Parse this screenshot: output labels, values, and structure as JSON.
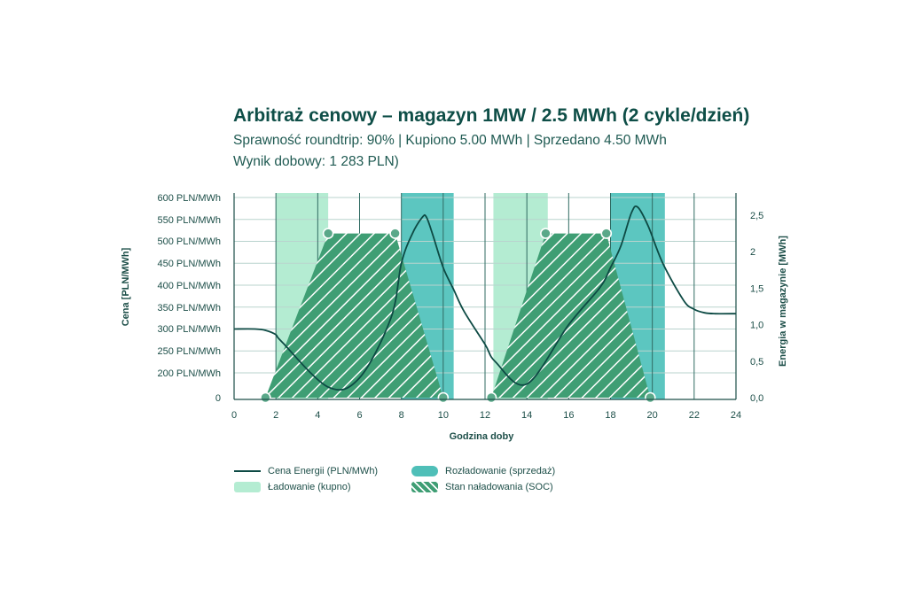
{
  "title": "Arbitraż cenowy – magazyn 1MW / 2.5 MWh (2 cykle/dzień)",
  "subtitle": "Sprawność roundtrip: 90% | Kupiono 5.00 MWh | Sprzedano 4.50 MWh",
  "subtitle2": "Wynik dobowy: 1 283 PLN)",
  "colors": {
    "text": "#0e4e47",
    "price_line": "#0d4a44",
    "charging": "#b4ecd2",
    "discharging": "#5cc6c0",
    "soc_fill": "#3f9e74",
    "grid": "#b9d3ce"
  },
  "chart_data": {
    "type": "line",
    "xlabel": "Godzina doby",
    "ylabel_left": "Cena [PLN/MWh]",
    "ylabel_right": "Energia w magazynie [MWh]",
    "x_ticks": [
      "0",
      "2",
      "4",
      "6",
      "8",
      "10",
      "12",
      "14",
      "16",
      "18",
      "20",
      "22",
      "24"
    ],
    "xlim": [
      0,
      24
    ],
    "y_left_ticks": [
      {
        "v": 0,
        "label": "0"
      },
      {
        "v": 200,
        "label": "200 PLN/MWh"
      },
      {
        "v": 250,
        "label": "250 PLN/MWh"
      },
      {
        "v": 300,
        "label": "300 PLN/MWh"
      },
      {
        "v": 350,
        "label": "350 PLN/MWh"
      },
      {
        "v": 400,
        "label": "400 PLN/MWh"
      },
      {
        "v": 450,
        "label": "450 PLN/MWh"
      },
      {
        "v": 500,
        "label": "500 PLN/MWh"
      },
      {
        "v": 550,
        "label": "550 PLN/MWh"
      },
      {
        "v": 600,
        "label": "600 PLN/MWh"
      }
    ],
    "y_right_ticks": [
      "0,0",
      "0,5",
      "1,0",
      "1,5",
      "2",
      "2,5"
    ],
    "ylim_right": [
      0,
      2.75
    ],
    "grid": true,
    "legend": [
      "Cena Energii (PLN/MWh)",
      "Ładowanie (kupno)",
      "Rozładowanie (sprzedaż)",
      "Stan naładowania (SOC)"
    ],
    "legend_position": "bottom",
    "charging_windows": [
      [
        2.0,
        4.5
      ],
      [
        12.4,
        15.0
      ]
    ],
    "discharging_windows": [
      [
        8.0,
        10.5
      ],
      [
        18.0,
        20.6
      ]
    ],
    "price_series": {
      "name": "Cena Energii (PLN/MWh)",
      "x": [
        0,
        1.0,
        1.5,
        2.0,
        2.3,
        4.5,
        6.0,
        7.5,
        8.0,
        8.5,
        9.0,
        9.2,
        9.5,
        10.0,
        10.5,
        11.0,
        12.0,
        12.5,
        14.0,
        16.0,
        17.5,
        18.0,
        18.5,
        19.0,
        19.3,
        19.8,
        20.5,
        21.5,
        22.0,
        22.5,
        23.0,
        24.0
      ],
      "y": [
        300,
        300,
        297,
        287,
        270,
        85,
        160,
        325,
        450,
        515,
        555,
        555,
        515,
        440,
        390,
        340,
        265,
        225,
        110,
        310,
        395,
        440,
        490,
        565,
        578,
        535,
        450,
        365,
        345,
        337,
        335,
        335
      ]
    },
    "soc_series": {
      "name": "Stan naładowania (SOC)",
      "x": [
        1.5,
        4.5,
        7.7,
        10.0,
        12.3,
        14.9,
        17.8,
        19.9
      ],
      "y": [
        0.0,
        2.25,
        2.25,
        0.0,
        0.0,
        2.25,
        2.25,
        0.0
      ]
    }
  }
}
